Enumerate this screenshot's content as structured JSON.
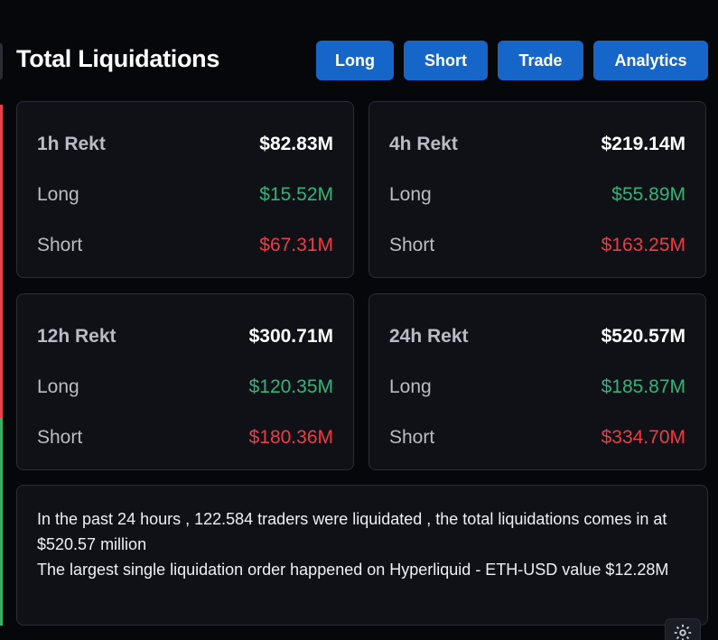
{
  "header": {
    "title": "Total Liquidations",
    "buttons": {
      "long": "Long",
      "short": "Short",
      "trade": "Trade",
      "analytics": "Analytics"
    }
  },
  "cards": [
    {
      "title": "1h Rekt",
      "total": "$82.83M",
      "long_label": "Long",
      "long": "$15.52M",
      "short_label": "Short",
      "short": "$67.31M"
    },
    {
      "title": "4h Rekt",
      "total": "$219.14M",
      "long_label": "Long",
      "long": "$55.89M",
      "short_label": "Short",
      "short": "$163.25M"
    },
    {
      "title": "12h Rekt",
      "total": "$300.71M",
      "long_label": "Long",
      "long": "$120.35M",
      "short_label": "Short",
      "short": "$180.36M"
    },
    {
      "title": "24h Rekt",
      "total": "$520.57M",
      "long_label": "Long",
      "long": "$185.87M",
      "short_label": "Short",
      "short": "$334.70M"
    }
  ],
  "summary": {
    "line1": "In the past 24 hours , 122.584 traders were liquidated , the total liquidations comes in at $520.57 million",
    "line2": "The largest single liquidation order happened on Hyperliquid - ETH-USD value $12.28M"
  },
  "colors": {
    "button": "#1566c8",
    "long": "#2fb57a",
    "short": "#ef3b45",
    "accent_red": "#e8414a",
    "accent_green": "#33b06a"
  },
  "icons": {
    "settings": "gear-icon"
  }
}
